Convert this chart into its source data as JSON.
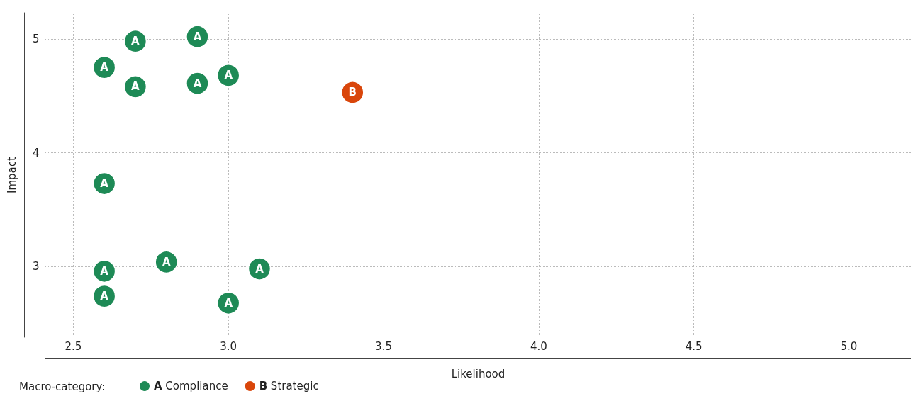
{
  "chart_data": {
    "type": "scatter",
    "xlabel": "Likelihood",
    "ylabel": "Impact",
    "legend_title": "Macro-category:",
    "legend": "bottom",
    "grid": true,
    "marker": "circle",
    "xlim": [
      2.41,
      5.2
    ],
    "xticks": [
      {
        "value": 2.5,
        "label": "2.5"
      },
      {
        "value": 3,
        "label": "3.0"
      },
      {
        "value": 3.5,
        "label": "3.5"
      },
      {
        "value": 4,
        "label": "4.0"
      },
      {
        "value": 4.5,
        "label": "4.5"
      },
      {
        "value": 5,
        "label": "5.0"
      }
    ],
    "ylim": [
      2.38,
      5.23
    ],
    "yticks": [
      3,
      4,
      5
    ],
    "series": [
      {
        "name": "A Compliance",
        "color": "#1e8a56",
        "x": [
          2.7,
          2.9,
          2.6,
          2.7,
          2.9,
          3.0,
          2.6,
          2.8,
          2.6,
          3.1,
          2.6,
          3.0
        ],
        "values": [
          4.98,
          5.02,
          4.75,
          4.58,
          4.61,
          4.68,
          3.73,
          3.04,
          2.96,
          2.98,
          2.74,
          2.68
        ],
        "value_labels": [
          "A",
          "A",
          "A",
          "A",
          "A",
          "A",
          "A",
          "A",
          "A",
          "A",
          "A",
          "A"
        ]
      },
      {
        "name": "B Strategic",
        "color": "#d9460b",
        "x": [
          3.4
        ],
        "values": [
          4.53
        ],
        "value_labels": [
          "B"
        ]
      }
    ]
  }
}
